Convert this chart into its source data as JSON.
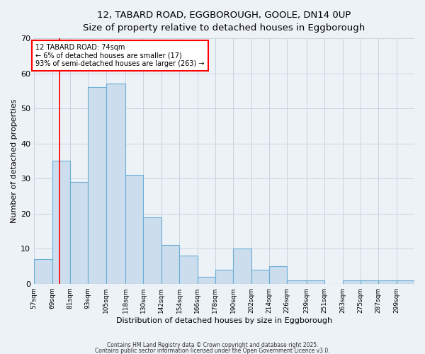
{
  "title_line1": "12, TABARD ROAD, EGGBOROUGH, GOOLE, DN14 0UP",
  "title_line2": "Size of property relative to detached houses in Eggborough",
  "xlabel": "Distribution of detached houses by size in Eggborough",
  "ylabel": "Number of detached properties",
  "bins": [
    57,
    69,
    81,
    93,
    105,
    118,
    130,
    142,
    154,
    166,
    178,
    190,
    202,
    214,
    226,
    239,
    251,
    263,
    275,
    287,
    299
  ],
  "counts": [
    7,
    35,
    29,
    56,
    57,
    31,
    19,
    11,
    8,
    2,
    4,
    10,
    4,
    5,
    1,
    1,
    0,
    1,
    1,
    1,
    1
  ],
  "bar_color": "#ccdded",
  "bar_edge_color": "#6aaed6",
  "ylim": [
    0,
    70
  ],
  "yticks": [
    0,
    10,
    20,
    30,
    40,
    50,
    60,
    70
  ],
  "red_line_x": 74,
  "annotation_line1": "12 TABARD ROAD: 74sqm",
  "annotation_line2": "← 6% of detached houses are smaller (17)",
  "annotation_line3": "93% of semi-detached houses are larger (263) →",
  "annotation_box_color": "white",
  "annotation_box_edge_color": "red",
  "footer_line1": "Contains HM Land Registry data © Crown copyright and database right 2025.",
  "footer_line2": "Contains public sector information licensed under the Open Government Licence v3.0.",
  "background_color": "#edf2f7",
  "grid_color": "#c8d4e0"
}
